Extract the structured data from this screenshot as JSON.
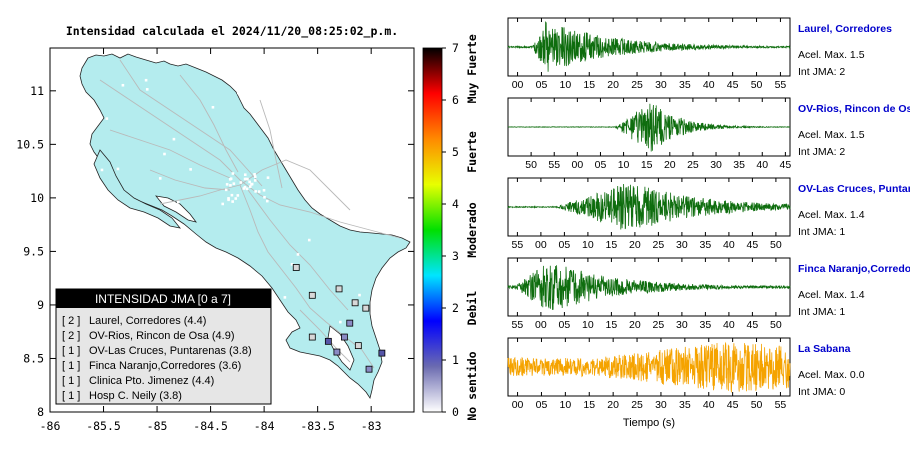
{
  "map": {
    "title": "Intensidad calculada el 2024/11/20_08:25:02_p.m.",
    "x_ticks": [
      "-86",
      "-85.5",
      "-85",
      "-84.5",
      "-84",
      "-83.5",
      "-83"
    ],
    "y_ticks": [
      "11",
      "10.5",
      "10",
      "9.5",
      "9",
      "8.5",
      "8"
    ],
    "colors": {
      "land": "#b4ecee",
      "sea": "#ffffff",
      "roads": "#b9b9b9",
      "coast": "#222222"
    },
    "legend": {
      "title": "INTENSIDAD JMA [0 a 7]",
      "items": [
        {
          "code": "[ 2 ]",
          "label": "Laurel, Corredores (4.4)"
        },
        {
          "code": "[ 2 ]",
          "label": "OV-Rios, Rincon de Osa (4.9)"
        },
        {
          "code": "[ 1 ]",
          "label": "OV-Las Cruces, Puntarenas (3.8)"
        },
        {
          "code": "[ 1 ]",
          "label": "Finca Naranjo,Corredores (3.6)"
        },
        {
          "code": "[ 1 ]",
          "label": "Clinica Pto. Jimenez (4.4)"
        },
        {
          "code": "[ 1 ]",
          "label": "Hosp C. Neily (3.8)"
        }
      ]
    },
    "stations": [
      {
        "lon": -82.9,
        "lat": 8.55,
        "intensity": 2
      },
      {
        "lon": -83.4,
        "lat": 8.66,
        "intensity": 2
      },
      {
        "lon": -83.25,
        "lat": 8.7,
        "intensity": 1
      },
      {
        "lon": -83.02,
        "lat": 8.4,
        "intensity": 1
      },
      {
        "lon": -83.2,
        "lat": 8.83,
        "intensity": 1
      },
      {
        "lon": -83.32,
        "lat": 8.56,
        "intensity": 1
      },
      {
        "lon": -83.55,
        "lat": 9.09,
        "intensity": 0
      },
      {
        "lon": -83.3,
        "lat": 9.15,
        "intensity": 0
      },
      {
        "lon": -83.15,
        "lat": 9.02,
        "intensity": 0
      },
      {
        "lon": -83.55,
        "lat": 8.7,
        "intensity": 0
      },
      {
        "lon": -83.05,
        "lat": 8.97,
        "intensity": 0
      },
      {
        "lon": -83.7,
        "lat": 9.35,
        "intensity": 0
      },
      {
        "lon": -83.12,
        "lat": 8.62,
        "intensity": 0
      }
    ]
  },
  "colorbar": {
    "ticks": [
      "0",
      "1",
      "2",
      "3",
      "4",
      "5",
      "6",
      "7"
    ],
    "labels": [
      {
        "text": "No sentido",
        "value": 0.5
      },
      {
        "text": "Debil",
        "value": 2.0
      },
      {
        "text": "Moderado",
        "value": 3.5
      },
      {
        "text": "Fuerte",
        "value": 5.0
      },
      {
        "text": "Muy Fuerte",
        "value": 6.6
      }
    ],
    "stops": [
      "#ffffff",
      "#6b6bb0",
      "#0000ff",
      "#00e5ff",
      "#00e000",
      "#e8ff00",
      "#ff8a00",
      "#ff0000",
      "#000000"
    ]
  },
  "waveforms": {
    "xlabel": "Tiempo (s)",
    "colors": {
      "strong": "#0e6d0e",
      "weak": "#f5a300",
      "name": "#0000cc"
    },
    "traces": [
      {
        "name": "Laurel, Corredores",
        "acel": "Acel. Max. 1.5",
        "int": "Int JMA: 2",
        "ticks": [
          "00",
          "05",
          "10",
          "15",
          "20",
          "25",
          "30",
          "35",
          "40",
          "45",
          "50",
          "55"
        ],
        "t_start": -2,
        "t_end": 57,
        "onset": 3,
        "peak": 6,
        "decay": 14,
        "amp": 1.0,
        "noise": 0.03,
        "color": "strong"
      },
      {
        "name": "OV-Rios, Rincon de Osa",
        "acel": "Acel. Max. 1.5",
        "int": "Int JMA: 2",
        "ticks": [
          "50",
          "55",
          "00",
          "05",
          "10",
          "15",
          "20",
          "25",
          "30",
          "35",
          "40",
          "45"
        ],
        "t_start": 45,
        "t_end": 106,
        "onset": 68,
        "peak": 76,
        "decay": 6,
        "amp": 1.0,
        "noise": 0.01,
        "color": "strong"
      },
      {
        "name": "OV-Las Cruces, Puntarenas",
        "acel": "Acel. Max. 1.4",
        "int": "Int JMA: 1",
        "ticks": [
          "55",
          "00",
          "05",
          "10",
          "15",
          "20",
          "25",
          "30",
          "35",
          "40",
          "45",
          "50"
        ],
        "t_start": 53,
        "t_end": 113,
        "onset": 63,
        "peak": 79,
        "decay": 15,
        "amp": 1.0,
        "noise": 0.02,
        "color": "strong"
      },
      {
        "name": "Finca Naranjo,Corredores",
        "acel": "Acel. Max. 1.4",
        "int": "Int JMA: 1",
        "ticks": [
          "55",
          "00",
          "05",
          "10",
          "15",
          "20",
          "25",
          "30",
          "35",
          "40",
          "45",
          "50"
        ],
        "t_start": 53,
        "t_end": 113,
        "onset": 54,
        "peak": 62,
        "decay": 14,
        "amp": 1.0,
        "noise": 0.05,
        "color": "strong"
      },
      {
        "name": "La Sabana",
        "acel": "Acel. Max. 0.0",
        "int": "Int JMA: 0",
        "ticks": [
          "00",
          "05",
          "10",
          "15",
          "20",
          "25",
          "30",
          "35",
          "40",
          "45",
          "50",
          "55"
        ],
        "t_start": -2,
        "t_end": 57,
        "onset": 0,
        "peak": 45,
        "decay": 60,
        "amp": 1.0,
        "noise": 0.35,
        "color": "weak"
      }
    ]
  }
}
